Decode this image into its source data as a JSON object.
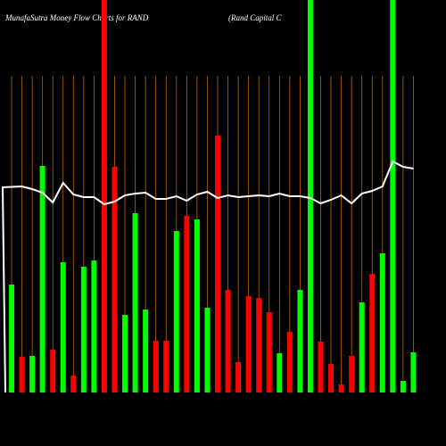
{
  "chart_data": {
    "type": "bar",
    "title": "MunafaSutra  Money Flow  Charts for RAND",
    "subtitle": "(Rand Capital C",
    "categories": [
      null,
      null,
      null,
      null,
      null,
      null,
      null,
      null,
      null,
      null,
      null,
      null,
      null,
      null,
      null,
      null,
      null,
      null,
      null,
      null,
      null,
      null,
      null,
      null,
      null,
      null,
      null,
      null,
      null,
      null,
      null,
      null,
      null,
      null,
      null,
      null,
      null,
      null,
      null,
      null
    ],
    "values": [
      121,
      40,
      41,
      254,
      48,
      146,
      19,
      141,
      148,
      440,
      253,
      87,
      201,
      93,
      58,
      58,
      181,
      198,
      194,
      95,
      288,
      115,
      34,
      108,
      106,
      90,
      44,
      68,
      115,
      440,
      57,
      32,
      9,
      41,
      101,
      133,
      156,
      440,
      13,
      45
    ],
    "colors": [
      "#00ff00",
      "#ff0000",
      "#00ff00",
      "#00ff00",
      "#ff0000",
      "#00ff00",
      "#ff0000",
      "#00ff00",
      "#00ff00",
      "#ff0000",
      "#ff0000",
      "#00ff00",
      "#00ff00",
      "#00ff00",
      "#ff0000",
      "#ff0000",
      "#00ff00",
      "#ff0000",
      "#00ff00",
      "#00ff00",
      "#ff0000",
      "#ff0000",
      "#ff0000",
      "#ff0000",
      "#ff0000",
      "#ff0000",
      "#00ff00",
      "#ff0000",
      "#00ff00",
      "#00ff00",
      "#ff0000",
      "#ff0000",
      "#ff0000",
      "#ff0000",
      "#00ff00",
      "#ff0000",
      "#00ff00",
      "#00ff00",
      "#00ff00",
      "#00ff00"
    ],
    "line": {
      "color": "#ffffff",
      "values": [
        230,
        231,
        228,
        224,
        213,
        235,
        222,
        219,
        219,
        211,
        214,
        221,
        223,
        224,
        217,
        217,
        220,
        215,
        222,
        225,
        218,
        221,
        219,
        220,
        221,
        220,
        223,
        220,
        220,
        218,
        212,
        216,
        221,
        212,
        223,
        226,
        231,
        259,
        253,
        251
      ]
    },
    "ylim": [
      0,
      440
    ],
    "grid_color": "#b8650a"
  }
}
